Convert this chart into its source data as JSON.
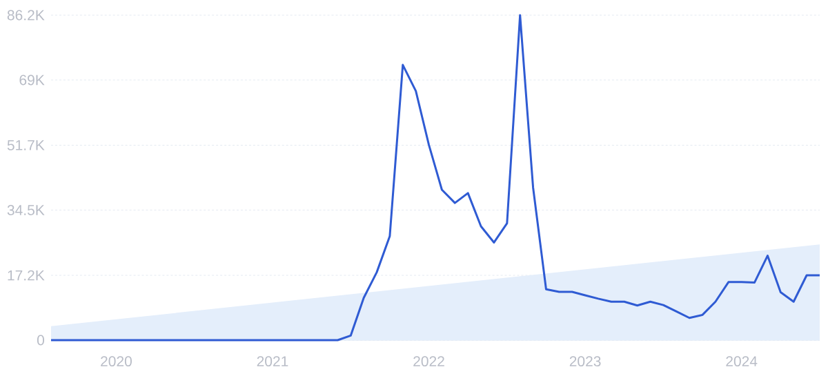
{
  "chart_data": {
    "type": "line",
    "series": [
      {
        "type": "area",
        "color": "#e4eefb",
        "x": [
          "2019-08",
          "2024-07"
        ],
        "values": [
          3700,
          25400
        ]
      },
      {
        "color": "#2f5bd3",
        "x": [
          "2019-08",
          "2019-09",
          "2019-10",
          "2019-11",
          "2019-12",
          "2020-01",
          "2020-02",
          "2020-03",
          "2020-04",
          "2020-05",
          "2020-06",
          "2020-07",
          "2020-08",
          "2020-09",
          "2020-10",
          "2020-11",
          "2020-12",
          "2021-01",
          "2021-02",
          "2021-03",
          "2021-04",
          "2021-05",
          "2021-06",
          "2021-07",
          "2021-08",
          "2021-09",
          "2021-10",
          "2021-11",
          "2021-12",
          "2022-01",
          "2022-02",
          "2022-03",
          "2022-04",
          "2022-05",
          "2022-06",
          "2022-07",
          "2022-08",
          "2022-09",
          "2022-10",
          "2022-11",
          "2022-12",
          "2023-01",
          "2023-02",
          "2023-03",
          "2023-04",
          "2023-05",
          "2023-06",
          "2023-07",
          "2023-08",
          "2023-09",
          "2023-10",
          "2023-11",
          "2023-12",
          "2024-01",
          "2024-02",
          "2024-03",
          "2024-04",
          "2024-05",
          "2024-06",
          "2024-07"
        ],
        "values": [
          0,
          0,
          0,
          0,
          0,
          0,
          0,
          0,
          0,
          0,
          0,
          0,
          0,
          0,
          0,
          0,
          0,
          0,
          0,
          0,
          0,
          0,
          0,
          1200,
          11200,
          18000,
          27600,
          73000,
          66100,
          51800,
          39900,
          36400,
          39000,
          30200,
          25900,
          31000,
          86200,
          40500,
          13500,
          12800,
          12800,
          11900,
          11000,
          10200,
          10200,
          9200,
          10200,
          9300,
          7600,
          5900,
          6700,
          10200,
          15400,
          15400,
          15300,
          22400,
          12700,
          10200,
          17200,
          17200
        ]
      }
    ],
    "xlim": [
      "2019-08",
      "2024-07"
    ],
    "xticks": [
      {
        "value": "2020-01",
        "label": "2020"
      },
      {
        "value": "2021-01",
        "label": "2021"
      },
      {
        "value": "2022-01",
        "label": "2022"
      },
      {
        "value": "2023-01",
        "label": "2023"
      },
      {
        "value": "2024-01",
        "label": "2024"
      }
    ],
    "ylim": [
      0,
      86200
    ],
    "yticks": [
      0,
      {
        "value": 17200,
        "label": "17.2K"
      },
      {
        "value": 34500,
        "label": "34.5K"
      },
      {
        "value": 51700,
        "label": "51.7K"
      },
      {
        "value": 69000,
        "label": "69K"
      },
      {
        "value": 86200,
        "label": "86.2K"
      }
    ],
    "grid": "y"
  }
}
